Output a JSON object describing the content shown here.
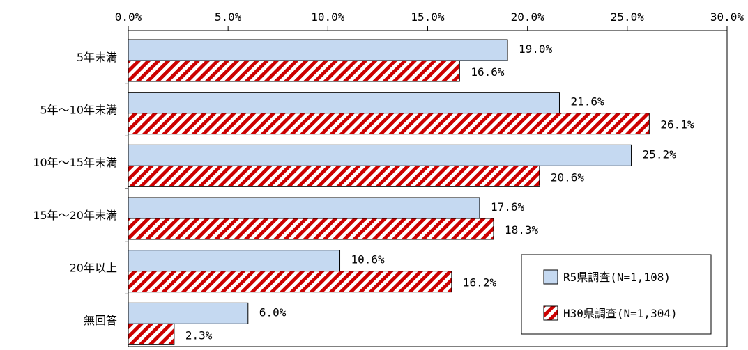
{
  "chart_data": {
    "type": "bar",
    "orientation": "horizontal",
    "categories": [
      "5年未満",
      "5年～10年未満",
      "10年～15年未満",
      "15年～20年未満",
      "20年以上",
      "無回答"
    ],
    "series": [
      {
        "name": "R5県調査(N=1,108)",
        "values": [
          19.0,
          21.6,
          25.2,
          17.6,
          10.6,
          6.0
        ],
        "labels": [
          "19.0%",
          "21.6%",
          "25.2%",
          "17.6%",
          "10.6%",
          "6.0%"
        ],
        "color": "#c5d9f1",
        "pattern": "solid"
      },
      {
        "name": "H30県調査(N=1,304)",
        "values": [
          16.6,
          26.1,
          20.6,
          18.3,
          16.2,
          2.3
        ],
        "labels": [
          "16.6%",
          "26.1%",
          "20.6%",
          "18.3%",
          "16.2%",
          "2.3%"
        ],
        "color": "#cc0000",
        "pattern": "diagonal-stripes"
      }
    ],
    "xlim": [
      0,
      30
    ],
    "ticks": [
      0,
      5,
      10,
      15,
      20,
      25,
      30
    ],
    "tick_labels": [
      "0.0%",
      "5.0%",
      "10.0%",
      "15.0%",
      "20.0%",
      "25.0%",
      "30.0%"
    ],
    "axis_position": "top",
    "grid": false,
    "legend_position": "bottom-right"
  }
}
